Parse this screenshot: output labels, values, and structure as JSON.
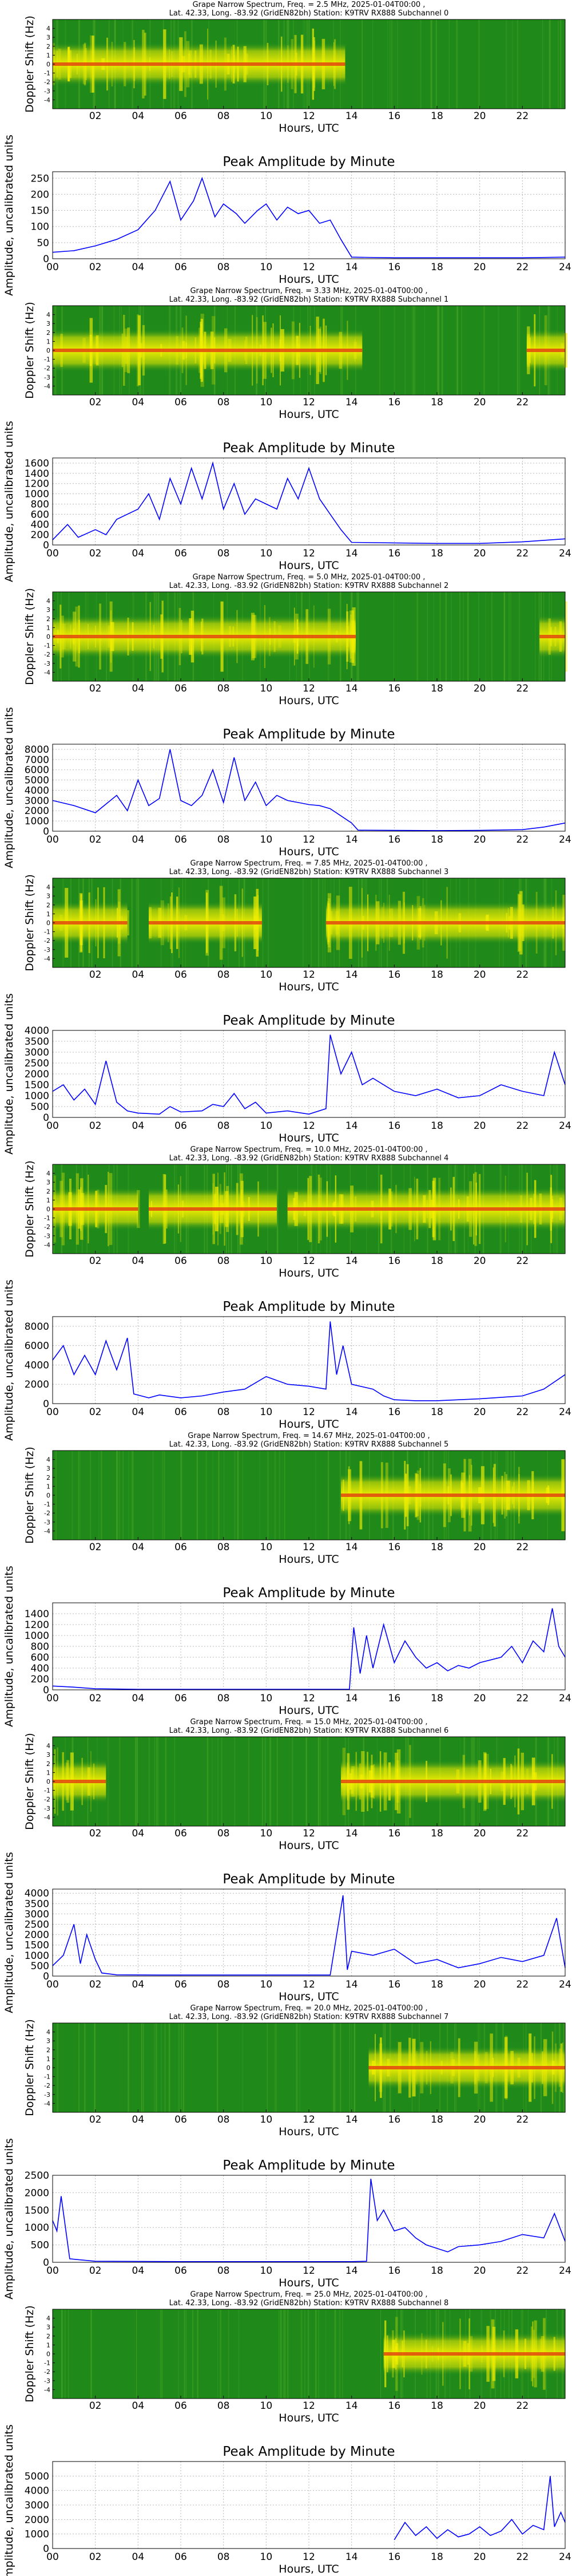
{
  "colors": {
    "spectrogram_bg": "#1f8a1a",
    "spectrogram_hot": "#f4f000",
    "spectrogram_core": "#e03010",
    "amplitude_line": "#0000ff",
    "grid": "#b8b8b8"
  },
  "common": {
    "spectrogram_ylabel": "Doppler Shift (Hz)",
    "spectrogram_yticks": [
      "4",
      "3",
      "2",
      "1",
      "0",
      "-1",
      "-2",
      "-3",
      "-4"
    ],
    "spectrogram_xticks": [
      "02",
      "04",
      "06",
      "08",
      "10",
      "12",
      "14",
      "16",
      "18",
      "20",
      "22"
    ],
    "amplitude_title": "Peak Amplitude by Minute",
    "amplitude_xlabel": "Hours, UTC",
    "amplitude_ylabel": "Amplitude, uncalibrated units",
    "spectrogram_xlabel": "Hours, UTC"
  },
  "chart_data": [
    {
      "type": "heatmap",
      "title_line1": "Grape Narrow Spectrum, Freq. = 2.5 MHz, 2025-01-04T00:00 ,",
      "title_line2": "Lat.  42.33, Long. -83.92 (GridEN82bh) Station: K9TRV RX888 Subchannel 0",
      "xlim": [
        0,
        24
      ],
      "ylim": [
        -5,
        5
      ],
      "activity": [
        [
          0,
          13.7
        ]
      ],
      "amplitude": {
        "type": "line",
        "xlim": [
          0,
          24
        ],
        "ylim": [
          0,
          270
        ],
        "yticks": [
          "0",
          "50",
          "100",
          "150",
          "200",
          "250"
        ],
        "x": [
          0,
          1,
          2,
          3,
          4,
          4.8,
          5.5,
          6,
          6.6,
          7,
          7.6,
          8,
          8.6,
          9,
          9.6,
          10,
          10.5,
          11,
          11.5,
          12,
          12.5,
          13,
          13.5,
          14,
          16,
          18,
          20,
          22,
          24
        ],
        "y": [
          20,
          25,
          40,
          60,
          90,
          150,
          240,
          120,
          180,
          250,
          130,
          170,
          140,
          110,
          150,
          170,
          120,
          160,
          140,
          150,
          110,
          120,
          60,
          5,
          3,
          3,
          3,
          3,
          5
        ]
      }
    },
    {
      "type": "heatmap",
      "title_line1": "Grape Narrow Spectrum, Freq. = 3.33 MHz, 2025-01-04T00:00 ,",
      "title_line2": "Lat.  42.33, Long. -83.92 (GridEN82bh) Station: K9TRV RX888 Subchannel 1",
      "xlim": [
        0,
        24
      ],
      "ylim": [
        -5,
        5
      ],
      "activity": [
        [
          0,
          14.5
        ],
        [
          22.2,
          24
        ]
      ],
      "amplitude": {
        "type": "line",
        "xlim": [
          0,
          24
        ],
        "ylim": [
          0,
          1700
        ],
        "yticks": [
          "0",
          "200",
          "400",
          "600",
          "800",
          "1000",
          "1200",
          "1400",
          "1600"
        ],
        "x": [
          0,
          0.7,
          1.2,
          2,
          2.5,
          3,
          4,
          4.5,
          5,
          5.5,
          6,
          6.5,
          7,
          7.5,
          8,
          8.5,
          9,
          9.5,
          10,
          10.5,
          11,
          11.5,
          12,
          12.5,
          13,
          13.5,
          14,
          16,
          18,
          20,
          22,
          24
        ],
        "y": [
          100,
          400,
          150,
          300,
          200,
          500,
          700,
          1000,
          500,
          1300,
          800,
          1500,
          900,
          1600,
          700,
          1200,
          600,
          900,
          800,
          700,
          1300,
          900,
          1500,
          900,
          600,
          300,
          50,
          40,
          30,
          30,
          60,
          120
        ]
      }
    },
    {
      "type": "heatmap",
      "title_line1": "Grape Narrow Spectrum, Freq. = 5.0 MHz, 2025-01-04T00:00 ,",
      "title_line2": "Lat.  42.33, Long. -83.92 (GridEN82bh) Station: K9TRV RX888 Subchannel 2",
      "xlim": [
        0,
        24
      ],
      "ylim": [
        -5,
        5
      ],
      "activity": [
        [
          0,
          14.2
        ],
        [
          22.8,
          24
        ]
      ],
      "amplitude": {
        "type": "line",
        "xlim": [
          0,
          24
        ],
        "ylim": [
          0,
          8500
        ],
        "yticks": [
          "0",
          "1000",
          "2000",
          "3000",
          "4000",
          "5000",
          "6000",
          "7000",
          "8000"
        ],
        "x": [
          0,
          1,
          2,
          3,
          3.5,
          4,
          4.5,
          5,
          5.5,
          6,
          6.5,
          7,
          7.5,
          8,
          8.5,
          9,
          9.5,
          10,
          10.5,
          11,
          11.5,
          12,
          12.5,
          13,
          13.5,
          14,
          14.3,
          16,
          18,
          20,
          22,
          23,
          24
        ],
        "y": [
          3000,
          2500,
          1800,
          3500,
          2000,
          5000,
          2500,
          3200,
          8000,
          3000,
          2500,
          3500,
          6000,
          2800,
          7200,
          3000,
          4800,
          2500,
          3500,
          3000,
          2800,
          2600,
          2500,
          2200,
          1500,
          800,
          100,
          80,
          60,
          80,
          150,
          400,
          800
        ]
      }
    },
    {
      "type": "heatmap",
      "title_line1": "Grape Narrow Spectrum, Freq. = 7.85 MHz, 2025-01-04T00:00 ,",
      "title_line2": "Lat.  42.33, Long. -83.92 (GridEN82bh) Station: K9TRV RX888 Subchannel 3",
      "xlim": [
        0,
        24
      ],
      "ylim": [
        -5,
        5
      ],
      "activity": [
        [
          0,
          3.5
        ],
        [
          4.5,
          9.8
        ],
        [
          12.8,
          24
        ]
      ],
      "amplitude": {
        "type": "line",
        "xlim": [
          0,
          24
        ],
        "ylim": [
          0,
          4000
        ],
        "yticks": [
          "0",
          "500",
          "1000",
          "1500",
          "2000",
          "2500",
          "3000",
          "3500",
          "4000"
        ],
        "x": [
          0,
          0.5,
          1,
          1.5,
          2,
          2.5,
          3,
          3.5,
          4,
          5,
          5.5,
          6,
          7,
          7.5,
          8,
          8.5,
          9,
          9.5,
          10,
          11,
          12,
          12.8,
          13,
          13.5,
          14,
          14.5,
          15,
          16,
          17,
          18,
          19,
          20,
          21,
          22,
          23,
          23.5,
          24
        ],
        "y": [
          1200,
          1500,
          800,
          1300,
          600,
          2600,
          700,
          300,
          200,
          150,
          500,
          250,
          300,
          600,
          500,
          1100,
          400,
          700,
          200,
          300,
          150,
          400,
          3800,
          2000,
          3000,
          1500,
          1800,
          1200,
          1000,
          1300,
          900,
          1000,
          1500,
          1200,
          1000,
          3000,
          1500
        ]
      }
    },
    {
      "type": "heatmap",
      "title_line1": "Grape Narrow Spectrum, Freq. = 10.0 MHz, 2025-01-04T00:00 ,",
      "title_line2": "Lat.  42.33, Long. -83.92 (GridEN82bh) Station: K9TRV RX888 Subchannel 4",
      "xlim": [
        0,
        24
      ],
      "ylim": [
        -5,
        5
      ],
      "activity": [
        [
          0,
          4.0
        ],
        [
          4.5,
          10.5
        ],
        [
          11,
          24
        ]
      ],
      "amplitude": {
        "type": "line",
        "xlim": [
          0,
          24
        ],
        "ylim": [
          0,
          9000
        ],
        "yticks": [
          "0",
          "2000",
          "4000",
          "6000",
          "8000"
        ],
        "x": [
          0,
          0.5,
          1,
          1.5,
          2,
          2.5,
          3,
          3.5,
          3.8,
          4.5,
          5,
          6,
          7,
          8,
          9,
          10,
          11,
          12,
          12.8,
          13,
          13.3,
          13.6,
          14,
          15,
          15.5,
          16,
          17,
          18,
          20,
          22,
          23,
          24
        ],
        "y": [
          4500,
          6000,
          3000,
          5000,
          3000,
          6500,
          3500,
          6800,
          1000,
          600,
          900,
          600,
          800,
          1200,
          1500,
          2800,
          2000,
          1800,
          1500,
          8500,
          3000,
          6000,
          2000,
          1500,
          800,
          400,
          300,
          300,
          500,
          800,
          1500,
          3000
        ]
      }
    },
    {
      "type": "heatmap",
      "title_line1": "Grape Narrow Spectrum, Freq. = 14.67 MHz, 2025-01-04T00:00 ,",
      "title_line2": "Lat.  42.33, Long. -83.92 (GridEN82bh) Station: K9TRV RX888 Subchannel 5",
      "xlim": [
        0,
        24
      ],
      "ylim": [
        -5,
        5
      ],
      "activity": [
        [
          13.5,
          24
        ]
      ],
      "amplitude": {
        "type": "line",
        "xlim": [
          0,
          24
        ],
        "ylim": [
          0,
          1600
        ],
        "yticks": [
          "0",
          "200",
          "400",
          "600",
          "800",
          "1000",
          "1200",
          "1400"
        ],
        "x": [
          0,
          1,
          2,
          4,
          8,
          12,
          13.9,
          14.1,
          14.4,
          14.7,
          15,
          15.5,
          16,
          16.5,
          17,
          17.5,
          18,
          18.5,
          19,
          19.5,
          20,
          20.5,
          21,
          21.5,
          22,
          22.5,
          23,
          23.4,
          23.7,
          24
        ],
        "y": [
          70,
          50,
          20,
          10,
          10,
          10,
          10,
          1150,
          300,
          1000,
          400,
          1200,
          500,
          900,
          600,
          400,
          500,
          350,
          450,
          400,
          500,
          550,
          600,
          800,
          500,
          900,
          700,
          1500,
          800,
          600
        ]
      }
    },
    {
      "type": "heatmap",
      "title_line1": "Grape Narrow Spectrum, Freq. = 15.0 MHz, 2025-01-04T00:00 ,",
      "title_line2": "Lat.  42.33, Long. -83.92 (GridEN82bh) Station: K9TRV RX888 Subchannel 6",
      "xlim": [
        0,
        24
      ],
      "ylim": [
        -5,
        5
      ],
      "activity": [
        [
          0,
          2.5
        ],
        [
          13.5,
          24
        ]
      ],
      "amplitude": {
        "type": "line",
        "xlim": [
          0,
          24
        ],
        "ylim": [
          0,
          4200
        ],
        "yticks": [
          "0",
          "500",
          "1000",
          "1500",
          "2000",
          "2500",
          "3000",
          "3500",
          "4000"
        ],
        "x": [
          0,
          0.5,
          1,
          1.3,
          1.6,
          2,
          2.3,
          3,
          5,
          8,
          11,
          13,
          13.6,
          13.8,
          14,
          15,
          16,
          17,
          18,
          19,
          20,
          21,
          22,
          23,
          23.6,
          24
        ],
        "y": [
          500,
          1000,
          2500,
          600,
          2000,
          800,
          150,
          60,
          50,
          50,
          50,
          50,
          3900,
          300,
          1200,
          1000,
          1300,
          600,
          800,
          400,
          600,
          900,
          700,
          1000,
          2800,
          400
        ]
      }
    },
    {
      "type": "heatmap",
      "title_line1": "Grape Narrow Spectrum, Freq. = 20.0 MHz, 2025-01-04T00:00 ,",
      "title_line2": "Lat.  42.33, Long. -83.92 (GridEN82bh) Station: K9TRV RX888 Subchannel 7",
      "xlim": [
        0,
        24
      ],
      "ylim": [
        -5,
        5
      ],
      "activity": [
        [
          14.8,
          24
        ]
      ],
      "amplitude": {
        "type": "line",
        "xlim": [
          0,
          24
        ],
        "ylim": [
          0,
          2500
        ],
        "yticks": [
          "0",
          "500",
          "1000",
          "1500",
          "2000",
          "2500"
        ],
        "x": [
          0,
          0.2,
          0.4,
          0.8,
          2,
          6,
          10,
          14,
          14.7,
          14.9,
          15.2,
          15.5,
          16,
          16.5,
          17,
          17.5,
          18,
          18.5,
          19,
          20,
          21,
          22,
          23,
          23.5,
          24
        ],
        "y": [
          1200,
          900,
          1900,
          100,
          30,
          20,
          20,
          20,
          30,
          2400,
          1200,
          1500,
          900,
          1000,
          700,
          500,
          400,
          300,
          450,
          500,
          600,
          800,
          700,
          1400,
          600
        ]
      }
    },
    {
      "type": "heatmap",
      "title_line1": "Grape Narrow Spectrum, Freq. = 25.0 MHz, 2025-01-04T00:00 ,",
      "title_line2": "Lat.  42.33, Long. -83.92 (GridEN82bh) Station: K9TRV RX888 Subchannel 8",
      "xlim": [
        0,
        24
      ],
      "ylim": [
        -5,
        5
      ],
      "activity": [
        [
          15.5,
          24
        ]
      ],
      "amplitude": {
        "type": "line",
        "xlim": [
          0,
          24
        ],
        "ylim": [
          0,
          6000
        ],
        "yticks": [
          "0",
          "1000",
          "2000",
          "3000",
          "4000",
          "5000"
        ],
        "x": [
          16,
          16.5,
          17,
          17.5,
          18,
          18.5,
          19,
          19.5,
          20,
          20.5,
          21,
          21.5,
          22,
          22.5,
          23,
          23.3,
          23.5,
          23.8,
          24
        ],
        "y": [
          600,
          1800,
          900,
          1500,
          700,
          1300,
          800,
          1000,
          1500,
          900,
          1200,
          2000,
          1000,
          1600,
          1300,
          5000,
          1500,
          2500,
          1800
        ]
      }
    }
  ]
}
